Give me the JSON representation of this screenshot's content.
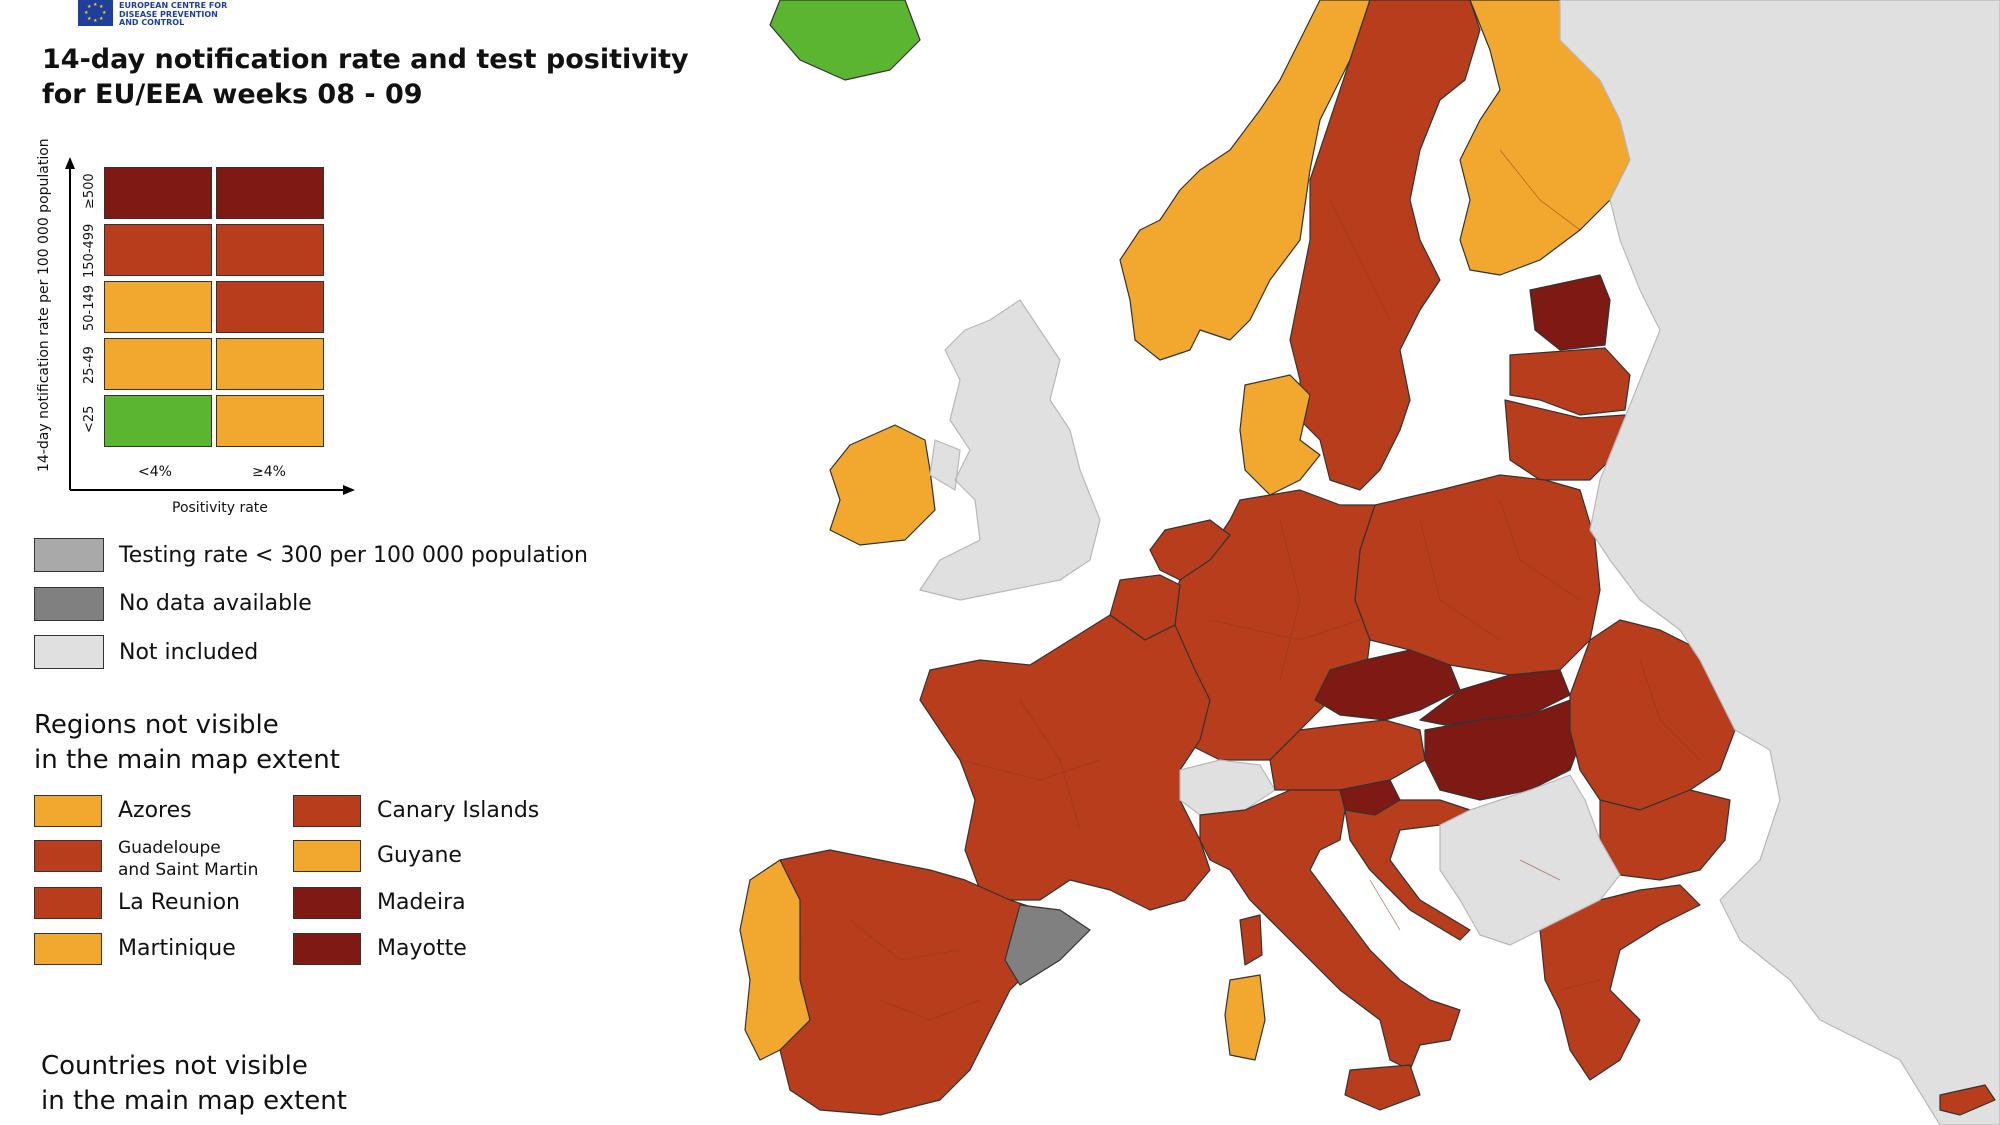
{
  "header": {
    "org_lines": [
      "EUROPEAN CENTRE FOR",
      "DISEASE PREVENTION",
      "AND CONTROL"
    ],
    "title_line1": "14-day notification rate and test positivity",
    "title_line2": "for EU/EEA weeks 08 - 09"
  },
  "colors": {
    "green": "#5cb531",
    "orange": "#f2a82e",
    "brown": "#b83d1c",
    "dark": "#7f1913",
    "testing_gray": "#a9a9a9",
    "nodata_gray": "#808080",
    "not_included": "#e0e0e0",
    "sea": "#ffffff"
  },
  "matrix_legend": {
    "y_title": "14-day notification rate per 100 000 population",
    "y_ticks": [
      "≥500",
      "150-499",
      "50-149",
      "25-49",
      "<25"
    ],
    "x_ticks": [
      "<4%",
      "≥4%"
    ],
    "x_title": "Positivity rate",
    "cells": [
      [
        "dark",
        "dark"
      ],
      [
        "brown",
        "brown"
      ],
      [
        "orange",
        "brown"
      ],
      [
        "orange",
        "orange"
      ],
      [
        "green",
        "orange"
      ]
    ]
  },
  "special_legend": [
    {
      "label": "Testing rate < 300 per 100 000 population",
      "color": "testing_gray"
    },
    {
      "label": "No data available",
      "color": "nodata_gray"
    },
    {
      "label": "Not included",
      "color": "not_included"
    }
  ],
  "regions_section": {
    "title_line1": "Regions not visible",
    "title_line2": "in the main map extent",
    "items": [
      {
        "label": "Azores",
        "color": "orange"
      },
      {
        "label": "Canary Islands",
        "color": "brown"
      },
      {
        "label": "Guadeloupe\nand Saint Martin",
        "color": "brown"
      },
      {
        "label": "Guyane",
        "color": "orange"
      },
      {
        "label": "La Reunion",
        "color": "brown"
      },
      {
        "label": "Madeira",
        "color": "dark"
      },
      {
        "label": "Martinique",
        "color": "orange"
      },
      {
        "label": "Mayotte",
        "color": "dark"
      }
    ]
  },
  "countries_section": {
    "title_line1": "Countries not visible",
    "title_line2": "in the main map extent"
  },
  "map": {
    "regions": [
      {
        "name": "Iceland",
        "color": "green"
      },
      {
        "name": "Ireland",
        "color": "orange"
      },
      {
        "name": "United Kingdom",
        "color": "not_included"
      },
      {
        "name": "Norway",
        "color": "orange"
      },
      {
        "name": "Sweden",
        "color": "brown"
      },
      {
        "name": "Finland",
        "color": "orange"
      },
      {
        "name": "Denmark",
        "color": "orange"
      },
      {
        "name": "Estonia",
        "color": "dark"
      },
      {
        "name": "Latvia",
        "color": "brown"
      },
      {
        "name": "Lithuania",
        "color": "brown"
      },
      {
        "name": "Poland",
        "color": "brown"
      },
      {
        "name": "Germany",
        "color": "brown"
      },
      {
        "name": "Netherlands",
        "color": "brown"
      },
      {
        "name": "Belgium",
        "color": "brown"
      },
      {
        "name": "France",
        "color": "brown"
      },
      {
        "name": "Switzerland",
        "color": "not_included"
      },
      {
        "name": "Austria",
        "color": "brown"
      },
      {
        "name": "Czechia",
        "color": "dark"
      },
      {
        "name": "Slovakia",
        "color": "dark"
      },
      {
        "name": "Hungary",
        "color": "dark"
      },
      {
        "name": "Slovenia",
        "color": "dark"
      },
      {
        "name": "Croatia",
        "color": "brown"
      },
      {
        "name": "Italy",
        "color": "brown"
      },
      {
        "name": "Spain",
        "color": "brown"
      },
      {
        "name": "Catalonia",
        "color": "nodata_gray"
      },
      {
        "name": "Portugal",
        "color": "orange"
      },
      {
        "name": "Romania",
        "color": "brown"
      },
      {
        "name": "Bulgaria",
        "color": "brown"
      },
      {
        "name": "Greece",
        "color": "brown"
      },
      {
        "name": "Balkans",
        "color": "not_included"
      },
      {
        "name": "Eastern Europe",
        "color": "not_included"
      },
      {
        "name": "Sardinia",
        "color": "orange"
      },
      {
        "name": "Corsica",
        "color": "brown"
      },
      {
        "name": "Sicily",
        "color": "brown"
      },
      {
        "name": "Cyprus",
        "color": "brown"
      }
    ]
  }
}
